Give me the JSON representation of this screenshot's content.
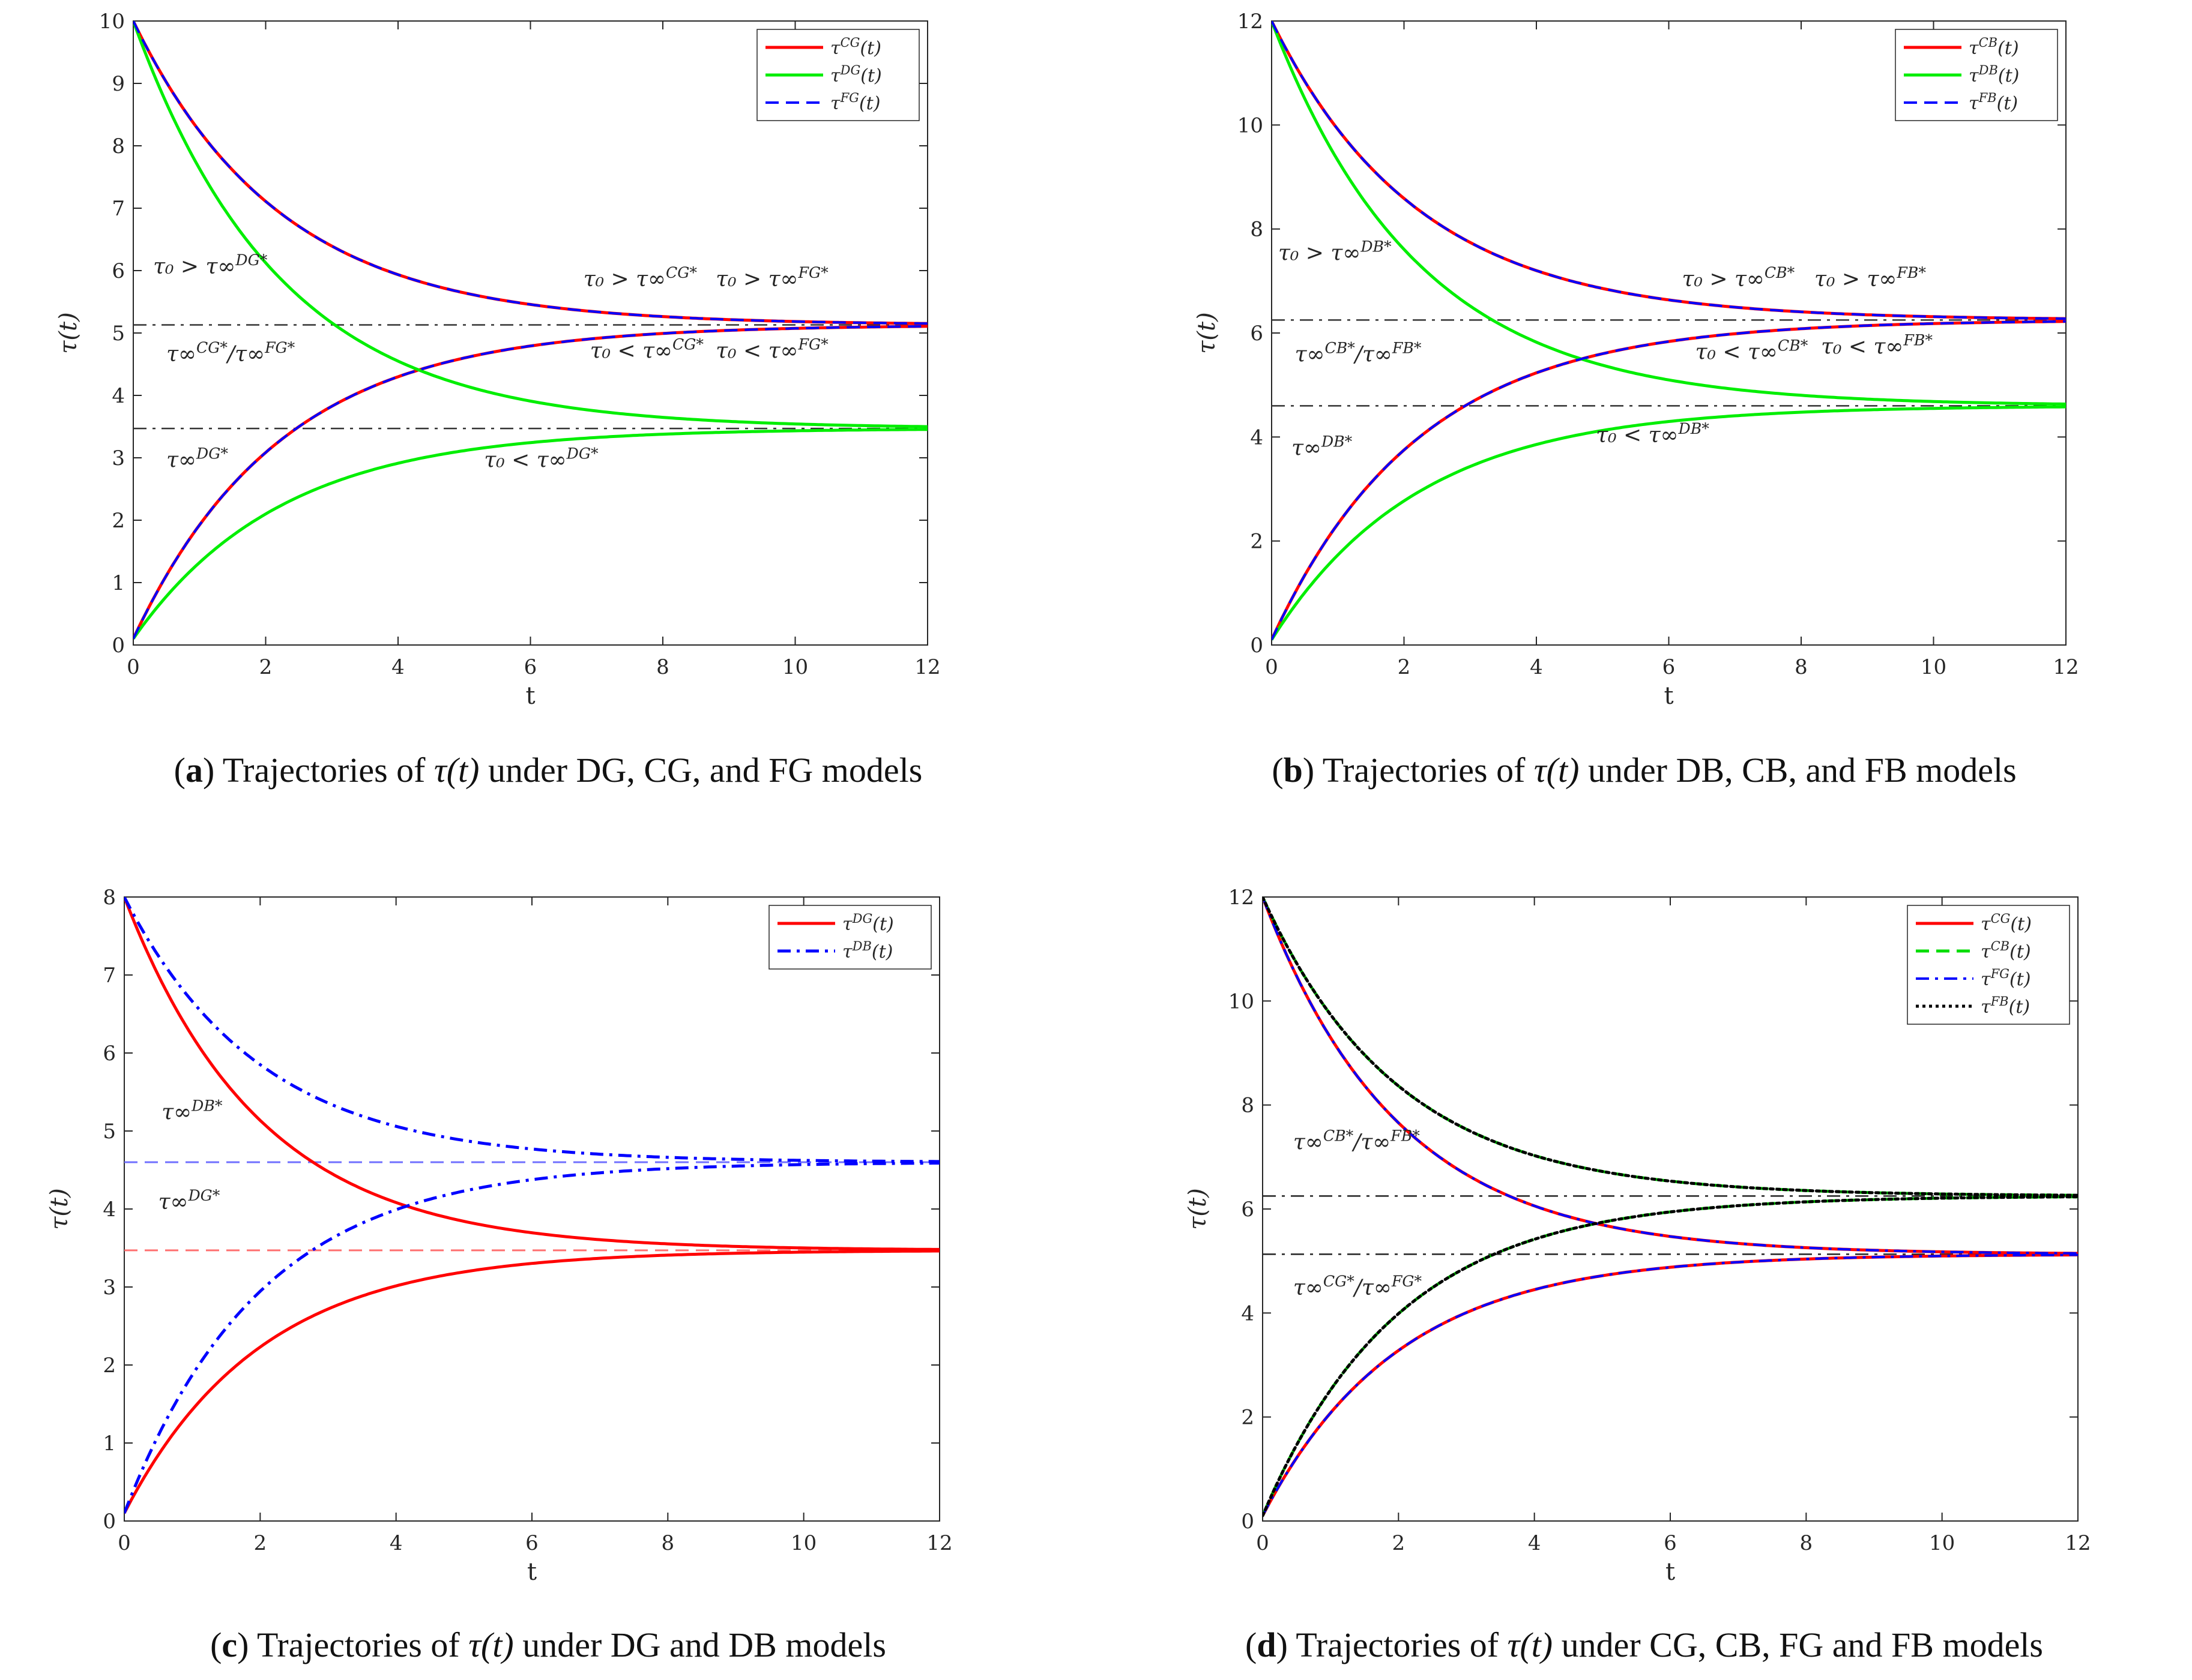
{
  "captions": [
    {
      "letter": "a",
      "pre": "Trajectories of ",
      "math": "τ(t)",
      "post": " under DG, CG, and FG models"
    },
    {
      "letter": "b",
      "pre": "Trajectories of ",
      "math": "τ(t)",
      "post": " under DB, CB, and FB models"
    },
    {
      "letter": "c",
      "pre": "Trajectories of ",
      "math": "τ(t)",
      "post": " under DG and DB models"
    },
    {
      "letter": "d",
      "pre": "Trajectories of ",
      "math": "τ(t)",
      "post": " under CG, CB, FG and FB models"
    }
  ],
  "chart_data": [
    {
      "id": "a",
      "type": "line",
      "xlabel": "t",
      "ylabel": "τ(t)",
      "xlim": [
        0,
        12
      ],
      "ylim": [
        0,
        10
      ],
      "xticks": [
        0,
        2,
        4,
        6,
        8,
        10,
        12
      ],
      "yticks": [
        0,
        1,
        2,
        3,
        4,
        5,
        6,
        7,
        8,
        9,
        10
      ],
      "legend_position": "top-right",
      "series": [
        {
          "name": "τ^CG(t)",
          "color": "#ff0000",
          "style": "solid",
          "width": 5,
          "tau0": [
            10,
            0.1
          ],
          "steady": 5.13,
          "k": 0.45
        },
        {
          "name": "τ^DG(t)",
          "color": "#00ee00",
          "style": "solid",
          "width": 5,
          "tau0": [
            10,
            0.1
          ],
          "steady": 3.47,
          "k": 0.45
        },
        {
          "name": "τ^FG(t)",
          "color": "#0000ff",
          "style": "dashed",
          "width": 4,
          "tau0": [
            10,
            0.1
          ],
          "steady": 5.13,
          "k": 0.45
        }
      ],
      "hlines": [
        {
          "y": 5.13,
          "color": "#333333",
          "style": "dashdot"
        },
        {
          "y": 3.47,
          "color": "#333333",
          "style": "dashdot"
        }
      ],
      "annotations": [
        {
          "text": "τ₀ > τ∞^DG*",
          "x": 0.3,
          "y": 5.95
        },
        {
          "text": "τ₀ > τ∞^CG*",
          "x": 6.8,
          "y": 5.75
        },
        {
          "text": "τ₀ > τ∞^FG*",
          "x": 8.8,
          "y": 5.75
        },
        {
          "text": "τ₀ < τ∞^CG*",
          "x": 6.9,
          "y": 4.6
        },
        {
          "text": "τ₀ < τ∞^FG*",
          "x": 8.8,
          "y": 4.6
        },
        {
          "text": "τ∞^CG*/τ∞^FG*",
          "x": 0.5,
          "y": 4.55
        },
        {
          "text": "τ∞^DG*",
          "x": 0.5,
          "y": 2.85
        },
        {
          "text": "τ₀ < τ∞^DG*",
          "x": 5.3,
          "y": 2.85
        }
      ]
    },
    {
      "id": "b",
      "type": "line",
      "xlabel": "t",
      "ylabel": "τ(t)",
      "xlim": [
        0,
        12
      ],
      "ylim": [
        0,
        12
      ],
      "xticks": [
        0,
        2,
        4,
        6,
        8,
        10,
        12
      ],
      "yticks": [
        0,
        2,
        4,
        6,
        8,
        10,
        12
      ],
      "legend_position": "top-right",
      "series": [
        {
          "name": "τ^CB(t)",
          "color": "#ff0000",
          "style": "solid",
          "width": 5,
          "tau0": [
            12,
            0.1
          ],
          "steady": 6.25,
          "k": 0.45
        },
        {
          "name": "τ^DB(t)",
          "color": "#00ee00",
          "style": "solid",
          "width": 5,
          "tau0": [
            12,
            0.1
          ],
          "steady": 4.6,
          "k": 0.45
        },
        {
          "name": "τ^FB(t)",
          "color": "#0000ff",
          "style": "dashed",
          "width": 4,
          "tau0": [
            12,
            0.1
          ],
          "steady": 6.25,
          "k": 0.45
        }
      ],
      "hlines": [
        {
          "y": 6.25,
          "color": "#333333",
          "style": "dashdot"
        },
        {
          "y": 4.6,
          "color": "#333333",
          "style": "dashdot"
        }
      ],
      "annotations": [
        {
          "text": "τ₀ > τ∞^DB*",
          "x": 0.1,
          "y": 7.4
        },
        {
          "text": "τ₀ > τ∞^CB*",
          "x": 6.2,
          "y": 6.9
        },
        {
          "text": "τ₀ > τ∞^FB*",
          "x": 8.2,
          "y": 6.9
        },
        {
          "text": "τ₀ < τ∞^CB*",
          "x": 6.4,
          "y": 5.5
        },
        {
          "text": "τ₀ < τ∞^FB*",
          "x": 8.3,
          "y": 5.6
        },
        {
          "text": "τ∞^CB*/τ∞^FB*",
          "x": 0.35,
          "y": 5.45
        },
        {
          "text": "τ∞^DB*",
          "x": 0.3,
          "y": 3.65
        },
        {
          "text": "τ₀ < τ∞^DB*",
          "x": 4.9,
          "y": 3.9
        }
      ]
    },
    {
      "id": "c",
      "type": "line",
      "xlabel": "t",
      "ylabel": "τ(t)",
      "xlim": [
        0,
        12
      ],
      "ylim": [
        0,
        8
      ],
      "xticks": [
        0,
        2,
        4,
        6,
        8,
        10,
        12
      ],
      "yticks": [
        0,
        1,
        2,
        3,
        4,
        5,
        6,
        7,
        8
      ],
      "legend_position": "top-right",
      "series": [
        {
          "name": "τ^DG(t)",
          "color": "#ff0000",
          "style": "solid",
          "width": 5,
          "tau0": [
            8,
            0.1
          ],
          "steady": 3.47,
          "k": 0.5
        },
        {
          "name": "τ^DB(t)",
          "color": "#0000ff",
          "style": "dashdot",
          "width": 5,
          "tau0": [
            8,
            0.1
          ],
          "steady": 4.6,
          "k": 0.5
        }
      ],
      "hlines": [
        {
          "y": 4.6,
          "color": "#7070ff",
          "style": "dashed"
        },
        {
          "y": 3.47,
          "color": "#ff7070",
          "style": "dashed"
        }
      ],
      "annotations": [
        {
          "text": "τ∞^DB*",
          "x": 0.55,
          "y": 5.15
        },
        {
          "text": "τ∞^DG*",
          "x": 0.5,
          "y": 4.0
        }
      ]
    },
    {
      "id": "d",
      "type": "line",
      "xlabel": "t",
      "ylabel": "τ(t)",
      "xlim": [
        0,
        12
      ],
      "ylim": [
        0,
        12
      ],
      "xticks": [
        0,
        2,
        4,
        6,
        8,
        10,
        12
      ],
      "yticks": [
        0,
        2,
        4,
        6,
        8,
        10,
        12
      ],
      "legend_position": "top-right",
      "series": [
        {
          "name": "τ^CG(t)",
          "color": "#ff0000",
          "style": "solid",
          "width": 5,
          "tau0": [
            12,
            0.1
          ],
          "steady": 5.13,
          "k": 0.5
        },
        {
          "name": "τ^CB(t)",
          "color": "#00dd00",
          "style": "dashed",
          "width": 5,
          "tau0": [
            12,
            0.1
          ],
          "steady": 6.25,
          "k": 0.5
        },
        {
          "name": "τ^FG(t)",
          "color": "#0000ff",
          "style": "dashdot",
          "width": 4,
          "tau0": [
            12,
            0.1
          ],
          "steady": 5.13,
          "k": 0.5
        },
        {
          "name": "τ^FB(t)",
          "color": "#000000",
          "style": "dotted",
          "width": 5,
          "tau0": [
            12,
            0.1
          ],
          "steady": 6.25,
          "k": 0.5
        }
      ],
      "hlines": [
        {
          "y": 6.25,
          "color": "#222222",
          "style": "dashdot"
        },
        {
          "y": 5.13,
          "color": "#222222",
          "style": "dashdot"
        }
      ],
      "annotations": [
        {
          "text": "τ∞^CB*/τ∞^FB*",
          "x": 0.45,
          "y": 7.15
        },
        {
          "text": "τ∞^CG*/τ∞^FG*",
          "x": 0.45,
          "y": 4.35
        }
      ]
    }
  ]
}
